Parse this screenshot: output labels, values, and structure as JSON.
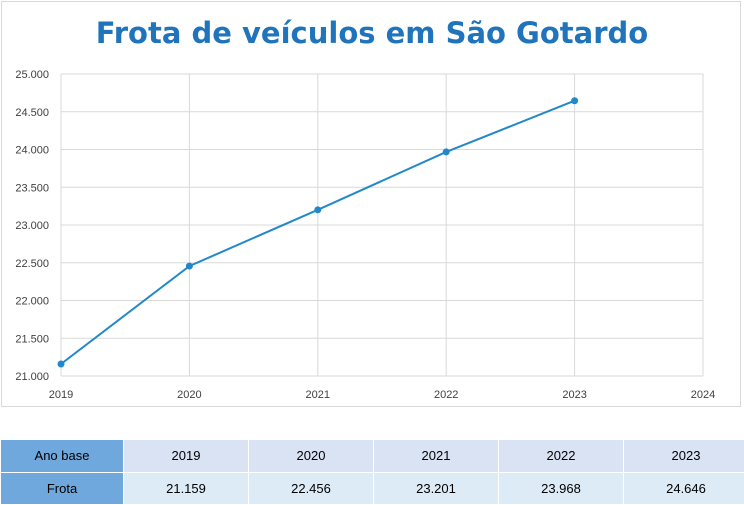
{
  "chart_data": {
    "type": "line",
    "title": "Frota de veículos em São Gotardo",
    "x": [
      2019,
      2020,
      2021,
      2022,
      2023
    ],
    "series": [
      {
        "values": [
          21159,
          22456,
          23201,
          23968,
          24646
        ]
      }
    ],
    "x_ticks": [
      "2019",
      "2020",
      "2021",
      "2022",
      "2023",
      "2024"
    ],
    "y_ticks": [
      "21.000",
      "21.500",
      "22.000",
      "22.500",
      "23.000",
      "23.500",
      "24.000",
      "24.500",
      "25.000"
    ],
    "xlim": [
      2019,
      2024
    ],
    "ylim": [
      21000,
      25000
    ],
    "grid": true,
    "legend": "none",
    "line_color": "#2288c9"
  },
  "table": {
    "header_label": "Ano base",
    "value_label": "Frota",
    "years": [
      "2019",
      "2020",
      "2021",
      "2022",
      "2023"
    ],
    "values": [
      "21.159",
      "22.456",
      "23.201",
      "23.968",
      "24.646"
    ]
  }
}
